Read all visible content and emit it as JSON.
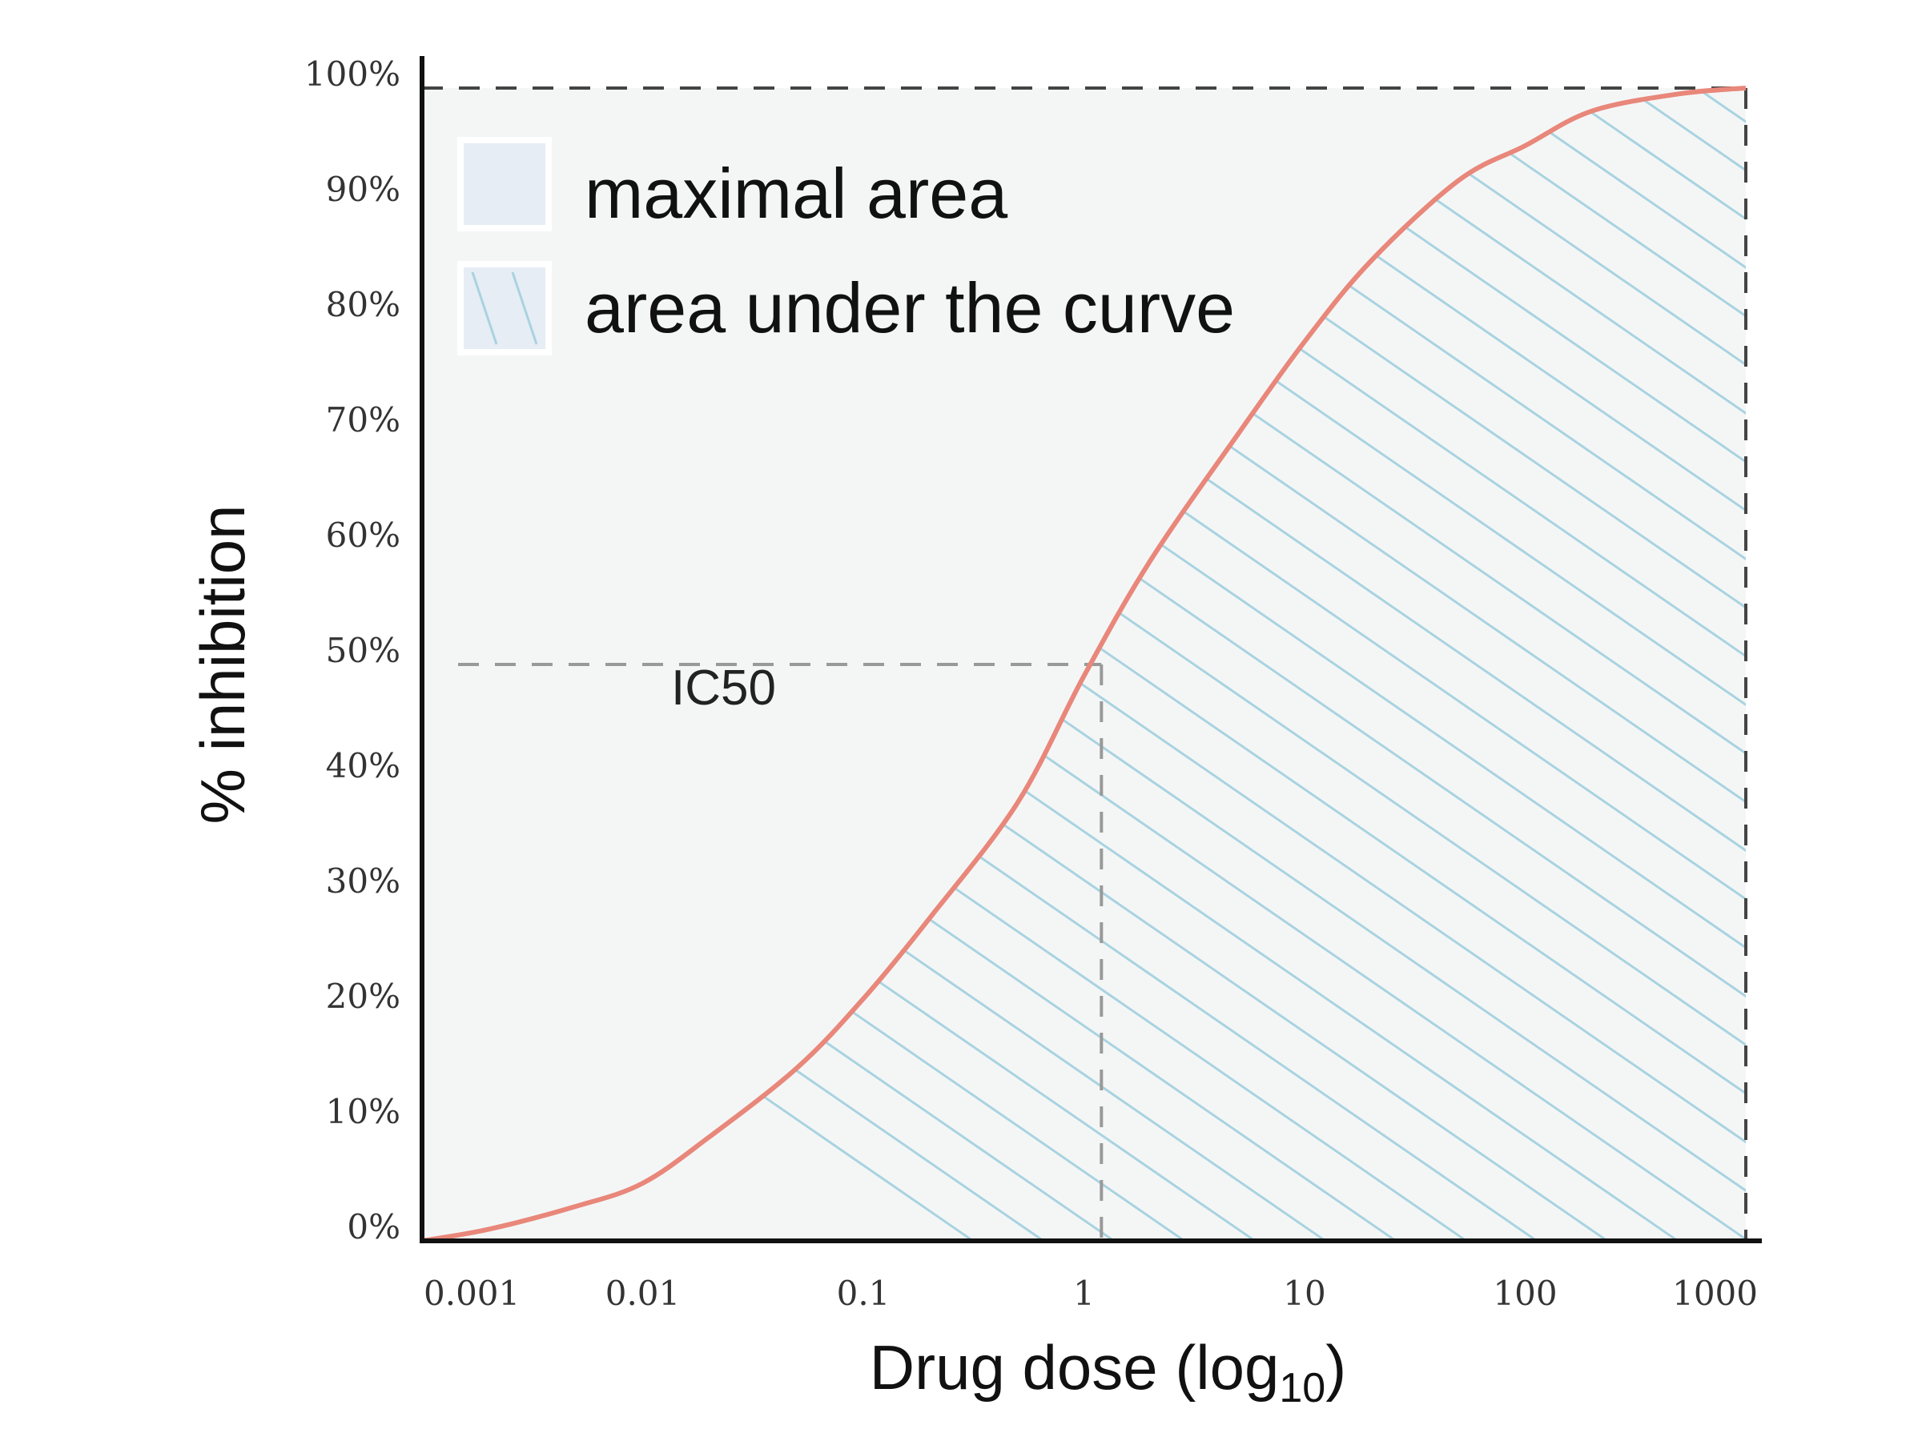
{
  "chart_data": {
    "type": "line",
    "xlabel": "Drug dose (log",
    "xlabel_subscript": "10",
    "xlabel_suffix": ")",
    "ylabel": "% inhibition",
    "x_scale": "log",
    "xlim": [
      0.001,
      1000
    ],
    "ylim": [
      0,
      100
    ],
    "x_tick_values": [
      0.001,
      0.01,
      0.1,
      1,
      10,
      100,
      1000
    ],
    "x_tick_labels": [
      "0.001",
      "0.01",
      "0.1",
      "1",
      "10",
      "100",
      "1000"
    ],
    "y_tick_values": [
      0,
      10,
      20,
      30,
      40,
      50,
      60,
      70,
      80,
      90,
      100
    ],
    "y_tick_labels": [
      "0%",
      "10%",
      "20%",
      "30%",
      "40%",
      "50%",
      "60%",
      "70%",
      "80%",
      "90%",
      "100%"
    ],
    "grid": false,
    "legend_position": "top-left",
    "legend": [
      {
        "label": "maximal area",
        "style": "solid"
      },
      {
        "label": "area under the curve",
        "style": "hatched"
      }
    ],
    "series": [
      {
        "color": "#e8877a",
        "x": [
          0.001,
          0.002,
          0.005,
          0.01,
          0.02,
          0.05,
          0.1,
          0.2,
          0.5,
          1,
          2,
          5,
          10,
          20,
          50,
          100,
          200,
          500,
          1000
        ],
        "y": [
          0,
          1,
          3,
          5,
          9,
          15,
          21,
          28,
          38,
          49,
          59,
          70,
          78,
          85,
          92,
          95,
          98,
          99.5,
          100
        ]
      }
    ],
    "annotations": [
      {
        "label": "IC50",
        "x": 1.2,
        "y": 50
      }
    ],
    "reference_lines": [
      {
        "orientation": "horizontal",
        "y": 100,
        "style": "dashed"
      },
      {
        "orientation": "vertical",
        "x": 1000,
        "style": "dashed"
      },
      {
        "orientation": "horizontal",
        "y": 50,
        "style": "dashed",
        "to_x": 1.2
      },
      {
        "orientation": "vertical",
        "x": 1.2,
        "style": "dashed",
        "to_y": 50
      }
    ],
    "colors": {
      "curve": "#e8877a",
      "hatch": "#a9d3e0",
      "maximal_area_fill": "#f4f6f6",
      "legend_solid": "#e6edf5",
      "axis": "#111111",
      "reference": "#999999"
    }
  }
}
